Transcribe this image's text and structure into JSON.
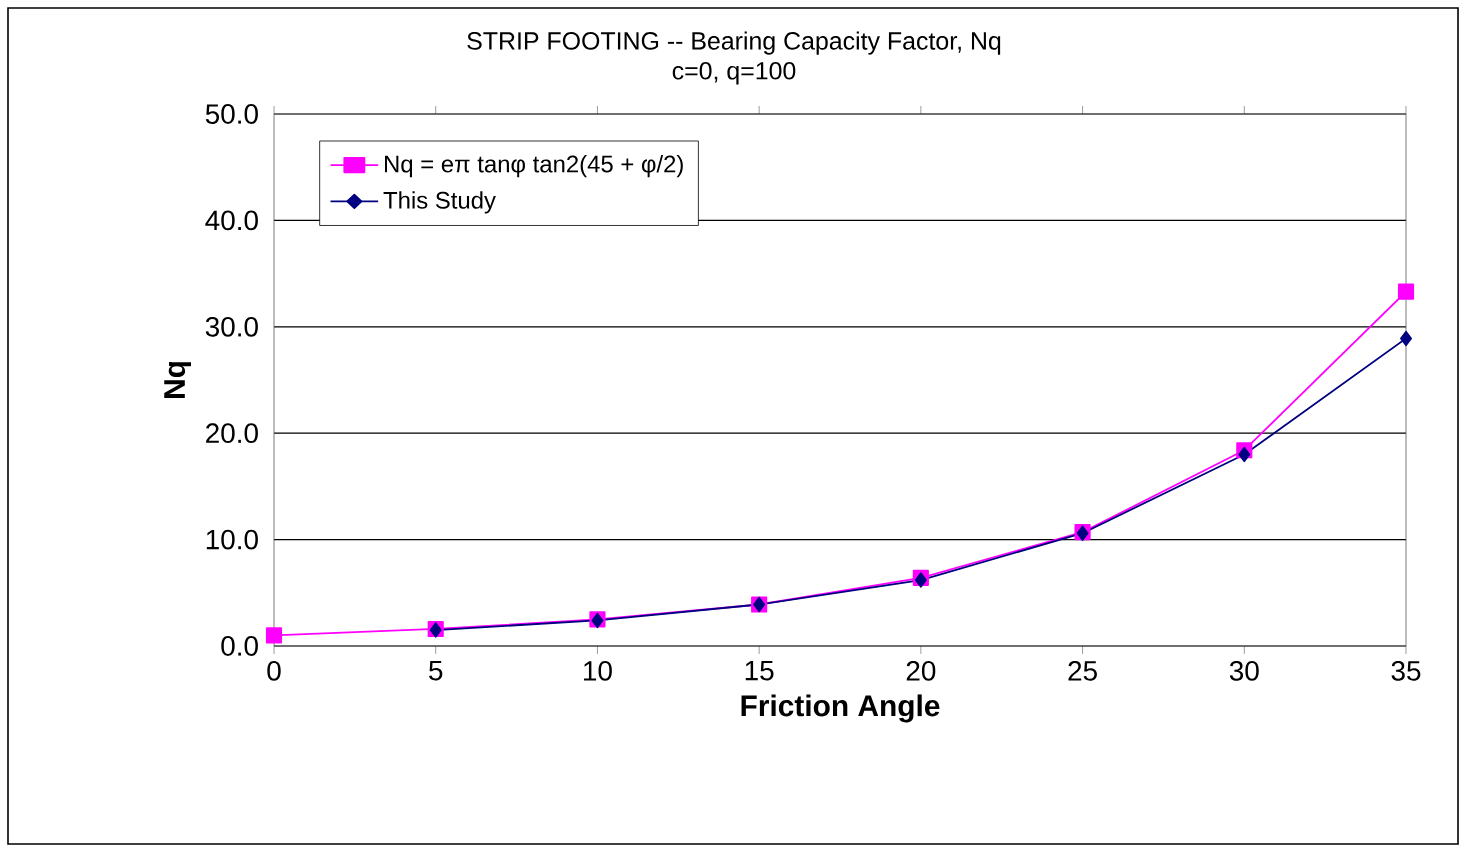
{
  "chart_data": {
    "type": "line",
    "title": "STRIP FOOTING -- Bearing Capacity Factor, Nq",
    "subtitle": "c=0, q=100",
    "xlabel": "Friction Angle",
    "ylabel": "Nq",
    "x": [
      0,
      5,
      10,
      15,
      20,
      25,
      30,
      35
    ],
    "series": [
      {
        "name": "Nq = eπ tanφ tan2(45 + φ/2)",
        "color": "#ff00ff",
        "marker": "square",
        "values": [
          1.0,
          1.6,
          2.5,
          3.9,
          6.4,
          10.7,
          18.4,
          33.3
        ]
      },
      {
        "name": "This Study",
        "color": "#000080",
        "marker": "diamond",
        "values": [
          null,
          1.5,
          2.4,
          3.9,
          6.2,
          10.6,
          18.0,
          28.9
        ]
      }
    ],
    "xlim": [
      0,
      35
    ],
    "xticks": [
      0,
      5,
      10,
      15,
      20,
      25,
      30,
      35
    ],
    "ylim": [
      0,
      50
    ],
    "yticks": [
      {
        "value": 0,
        "label": "0.0"
      },
      {
        "value": 10,
        "label": "10.0"
      },
      {
        "value": 20,
        "label": "20.0"
      },
      {
        "value": 30,
        "label": "30.0"
      },
      {
        "value": 40,
        "label": "40.0"
      },
      {
        "value": 50,
        "label": "50.0"
      }
    ],
    "grid": "y",
    "legend": "top left",
    "line_style": "solid"
  }
}
